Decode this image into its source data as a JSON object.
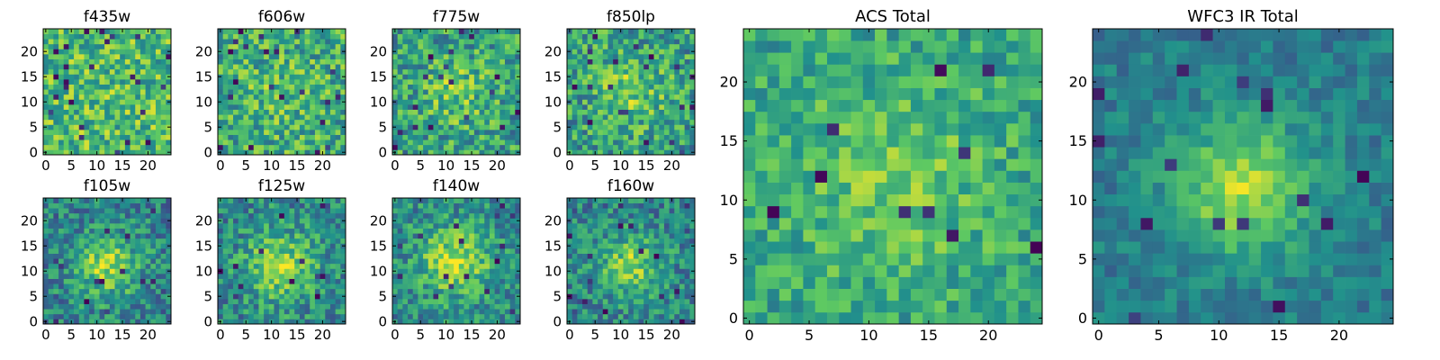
{
  "figure": {
    "colormap": [
      "#440154",
      "#3b528b",
      "#21918c",
      "#5ec962",
      "#fde725"
    ],
    "frame_color": "#000000"
  },
  "chart_data": [
    {
      "type": "heatmap",
      "title": "f435w",
      "grid_size": 25,
      "x_ticks": [
        "0",
        "5",
        "10",
        "15",
        "20"
      ],
      "y_ticks": [
        "0",
        "5",
        "10",
        "15",
        "20"
      ],
      "seed": 11,
      "center": [
        12,
        12
      ],
      "sigma": 6,
      "amp": 0.02,
      "base": 0.68,
      "noise": 0.26,
      "dark_outliers": 26
    },
    {
      "type": "heatmap",
      "title": "f606w",
      "grid_size": 25,
      "x_ticks": [
        "0",
        "5",
        "10",
        "15",
        "20"
      ],
      "y_ticks": [
        "0",
        "5",
        "10",
        "15",
        "20"
      ],
      "seed": 23,
      "center": [
        12,
        12
      ],
      "sigma": 5,
      "amp": 0.08,
      "base": 0.62,
      "noise": 0.26,
      "dark_outliers": 22
    },
    {
      "type": "heatmap",
      "title": "f775w",
      "grid_size": 25,
      "x_ticks": [
        "0",
        "5",
        "10",
        "15",
        "20"
      ],
      "y_ticks": [
        "0",
        "5",
        "10",
        "15",
        "20"
      ],
      "seed": 37,
      "center": [
        12,
        12
      ],
      "sigma": 5,
      "amp": 0.18,
      "base": 0.56,
      "noise": 0.26,
      "dark_outliers": 18
    },
    {
      "type": "heatmap",
      "title": "f850lp",
      "grid_size": 25,
      "x_ticks": [
        "0",
        "5",
        "10",
        "15",
        "20"
      ],
      "y_ticks": [
        "0",
        "5",
        "10",
        "15",
        "20"
      ],
      "seed": 41,
      "center": [
        12,
        12
      ],
      "sigma": 5,
      "amp": 0.2,
      "base": 0.56,
      "noise": 0.26,
      "dark_outliers": 20
    },
    {
      "type": "heatmap",
      "title": "f105w",
      "grid_size": 25,
      "x_ticks": [
        "0",
        "5",
        "10",
        "15",
        "20"
      ],
      "y_ticks": [
        "0",
        "5",
        "10",
        "15",
        "20"
      ],
      "seed": 53,
      "center": [
        12,
        11
      ],
      "sigma": 4.5,
      "amp": 0.38,
      "base": 0.44,
      "noise": 0.22,
      "dark_outliers": 14
    },
    {
      "type": "heatmap",
      "title": "f125w",
      "grid_size": 25,
      "x_ticks": [
        "0",
        "5",
        "10",
        "15",
        "20"
      ],
      "y_ticks": [
        "0",
        "5",
        "10",
        "15",
        "20"
      ],
      "seed": 67,
      "center": [
        12,
        11
      ],
      "sigma": 5,
      "amp": 0.36,
      "base": 0.46,
      "noise": 0.22,
      "dark_outliers": 12
    },
    {
      "type": "heatmap",
      "title": "f140w",
      "grid_size": 25,
      "x_ticks": [
        "0",
        "5",
        "10",
        "15",
        "20"
      ],
      "y_ticks": [
        "0",
        "5",
        "10",
        "15",
        "20"
      ],
      "seed": 71,
      "center": [
        12,
        12
      ],
      "sigma": 5,
      "amp": 0.36,
      "base": 0.48,
      "noise": 0.22,
      "dark_outliers": 16
    },
    {
      "type": "heatmap",
      "title": "f160w",
      "grid_size": 25,
      "x_ticks": [
        "0",
        "5",
        "10",
        "15",
        "20"
      ],
      "y_ticks": [
        "0",
        "5",
        "10",
        "15",
        "20"
      ],
      "seed": 83,
      "center": [
        12,
        11
      ],
      "sigma": 4.5,
      "amp": 0.36,
      "base": 0.44,
      "noise": 0.22,
      "dark_outliers": 16
    },
    {
      "type": "heatmap",
      "title": "ACS Total",
      "grid_size": 25,
      "x_ticks": [
        "0",
        "5",
        "10",
        "15",
        "20"
      ],
      "y_ticks": [
        "0",
        "5",
        "10",
        "15",
        "20"
      ],
      "seed": 97,
      "center": [
        12,
        12
      ],
      "sigma": 6,
      "amp": 0.18,
      "base": 0.58,
      "noise": 0.18,
      "dark_outliers": 10
    },
    {
      "type": "heatmap",
      "title": "WFC3 IR Total",
      "grid_size": 25,
      "x_ticks": [
        "0",
        "5",
        "10",
        "15",
        "20"
      ],
      "y_ticks": [
        "0",
        "5",
        "10",
        "15",
        "20"
      ],
      "seed": 109,
      "center": [
        12,
        11
      ],
      "sigma": 4,
      "amp": 0.45,
      "base": 0.42,
      "noise": 0.12,
      "dark_outliers": 16
    }
  ]
}
